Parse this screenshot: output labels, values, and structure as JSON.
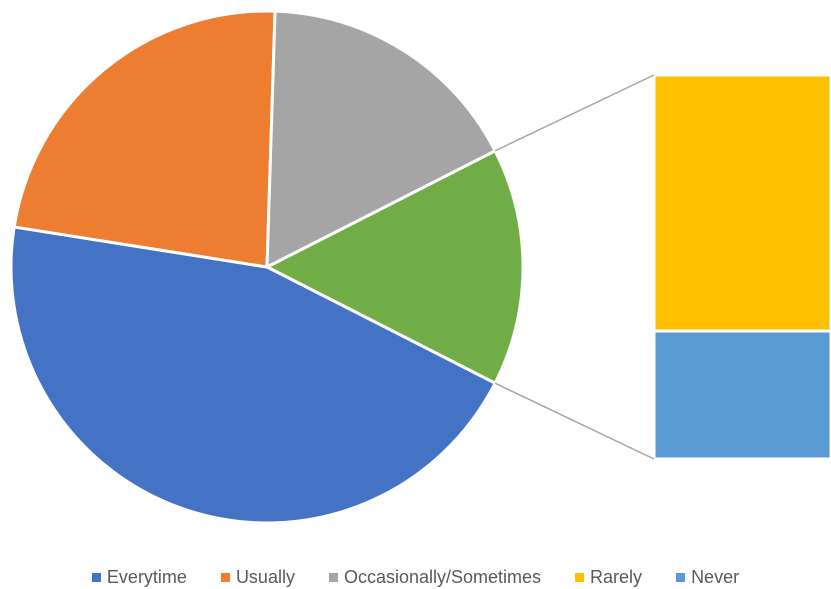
{
  "chart_data": {
    "type": "pie",
    "subtype": "bar-of-pie",
    "title": "",
    "categories": [
      "Everytime",
      "Usually",
      "Occasionally/Sometimes",
      "Rarely",
      "Never"
    ],
    "values": [
      45,
      23,
      17,
      10,
      5
    ],
    "colors": [
      "#4472C4",
      "#ED7D31",
      "#A5A5A5",
      "#FFC000",
      "#5B9BD5"
    ],
    "other_color": "#70AD47",
    "connector_color": "#A6A6A6",
    "secondary_categories": [
      "Rarely",
      "Never"
    ],
    "legend_position": "bottom",
    "data_labels": false
  }
}
